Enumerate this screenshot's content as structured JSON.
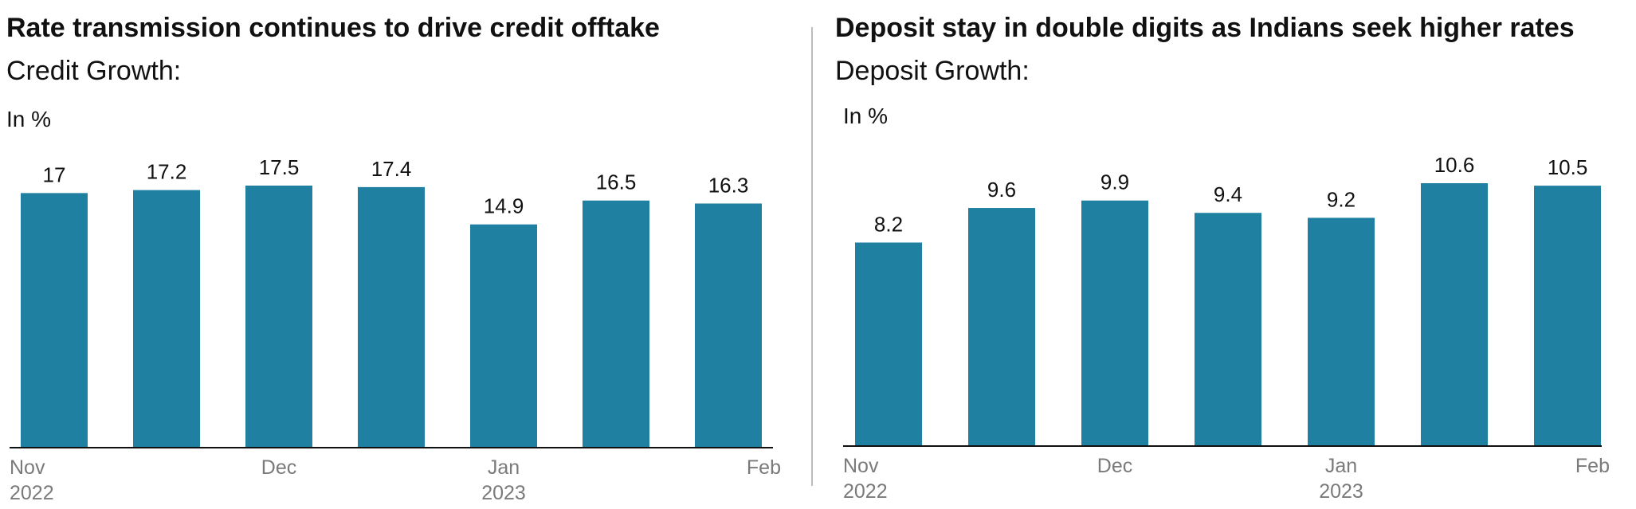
{
  "colors": {
    "bar": "#1f80a2",
    "axis": "#111111",
    "tick_text": "#7a7a7a",
    "divider": "#bdbdbd"
  },
  "panels": [
    {
      "title": "Rate transmission continues to drive credit offtake",
      "subtitle": "Credit Growth:",
      "unit": "In %"
    },
    {
      "title": "Deposit stay in double digits as Indians seek higher rates",
      "subtitle": "Deposit Growth:",
      "unit": "In %"
    }
  ],
  "chart_data": [
    {
      "type": "bar",
      "title": "Rate transmission continues to drive credit offtake",
      "subtitle": "Credit Growth:",
      "ylabel": "In %",
      "values": [
        17,
        17.2,
        17.5,
        17.4,
        14.9,
        16.5,
        16.3
      ],
      "data_labels": [
        "17",
        "17.2",
        "17.5",
        "17.4",
        "14.9",
        "16.5",
        "16.3"
      ],
      "x_ticks": [
        {
          "label": "Nov",
          "sub": "2022",
          "position": 0
        },
        {
          "label": "Dec",
          "sub": "",
          "position": 2
        },
        {
          "label": "Jan",
          "sub": "2023",
          "position": 4
        },
        {
          "label": "Feb",
          "sub": "",
          "position": 6
        }
      ],
      "ylim": [
        0,
        17.5
      ],
      "grid": false,
      "legend": "none"
    },
    {
      "type": "bar",
      "title": "Deposit stay in double digits as Indians seek higher rates",
      "subtitle": "Deposit Growth:",
      "ylabel": "In %",
      "values": [
        8.2,
        9.6,
        9.9,
        9.4,
        9.2,
        10.6,
        10.5
      ],
      "data_labels": [
        "8.2",
        "9.6",
        "9.9",
        "9.4",
        "9.2",
        "10.6",
        "10.5"
      ],
      "x_ticks": [
        {
          "label": "Nov",
          "sub": "2022",
          "position": 0
        },
        {
          "label": "Dec",
          "sub": "",
          "position": 2
        },
        {
          "label": "Jan",
          "sub": "2023",
          "position": 4
        },
        {
          "label": "Feb",
          "sub": "",
          "position": 6
        }
      ],
      "ylim": [
        0,
        10.6
      ],
      "grid": false,
      "legend": "none"
    }
  ]
}
